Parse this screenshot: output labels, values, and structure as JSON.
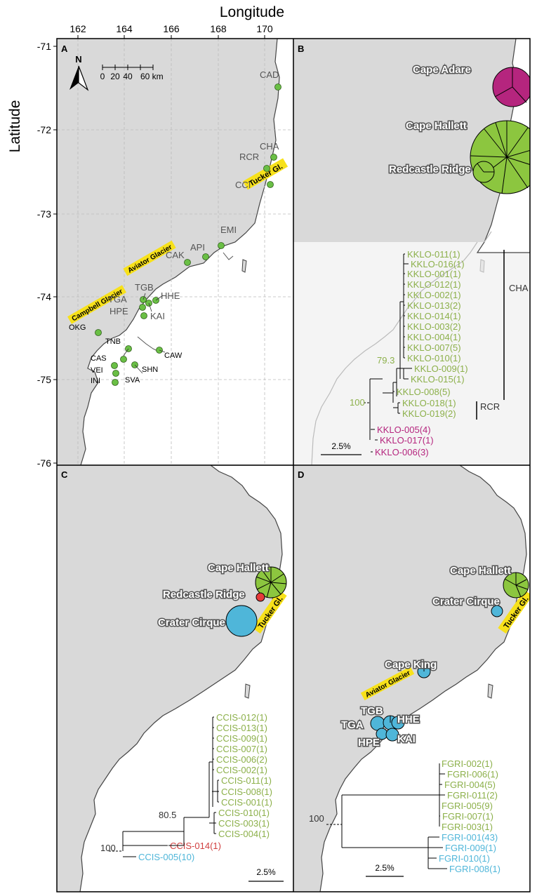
{
  "axes": {
    "x_title": "Longitude",
    "y_title": "Latitude",
    "x_ticks": [
      "162",
      "164",
      "166",
      "168",
      "170"
    ],
    "y_ticks": [
      "-71",
      "-72",
      "-73",
      "-74",
      "-75",
      "-76"
    ]
  },
  "panels": {
    "A": {
      "letter": "A",
      "north": "N",
      "scale_ticks": [
        "0",
        "20",
        "40",
        "60 km"
      ],
      "sites": [
        "CAD",
        "CHA",
        "RCR",
        "CCI",
        "EMI",
        "API",
        "CAK",
        "TGB",
        "TGA",
        "HHE",
        "HPE",
        "KAI",
        "OKG",
        "TNB",
        "CAS",
        "CAW",
        "VEI",
        "SHN",
        "INI",
        "SVA"
      ],
      "glaciers": [
        "Tucker Gl.",
        "Aviator Glacier",
        "Campbell Glacier"
      ]
    },
    "B": {
      "letter": "B",
      "locations": [
        "Cape Adare",
        "Cape Hallett",
        "Redcastle Ridge"
      ],
      "tips": [
        {
          "label": "KKLO-011(1)",
          "color": "green"
        },
        {
          "label": "KKLO-016(1)",
          "color": "green"
        },
        {
          "label": "KKLO-001(1)",
          "color": "green"
        },
        {
          "label": "KKLO-012(1)",
          "color": "green"
        },
        {
          "label": "KKLO-002(1)",
          "color": "green"
        },
        {
          "label": "KKLO-013(2)",
          "color": "green"
        },
        {
          "label": "KKLO-014(1)",
          "color": "green"
        },
        {
          "label": "KKLO-003(2)",
          "color": "green"
        },
        {
          "label": "KKLO-004(1)",
          "color": "green"
        },
        {
          "label": "KKLO-007(5)",
          "color": "green"
        },
        {
          "label": "KKLO-010(1)",
          "color": "green"
        },
        {
          "label": "KKLO-009(1)",
          "color": "green"
        },
        {
          "label": "KKLO-015(1)",
          "color": "green"
        },
        {
          "label": "KKLO-008(5)",
          "color": "green"
        },
        {
          "label": "KKLO-018(1)",
          "color": "green"
        },
        {
          "label": "KKLO-019(2)",
          "color": "green"
        },
        {
          "label": "KKLO-005(4)",
          "color": "magenta"
        },
        {
          "label": "KKLO-017(1)",
          "color": "magenta"
        },
        {
          "label": "KKLO-006(3)",
          "color": "magenta"
        }
      ],
      "clades": [
        "CHA",
        "RCR"
      ],
      "support": [
        "79.3",
        "100"
      ],
      "scale": "2.5%"
    },
    "C": {
      "letter": "C",
      "locations": [
        "Cape Hallett",
        "Redcastle Ridge",
        "Crater Cirque"
      ],
      "glacier": "Tucker Gl.",
      "tips": [
        {
          "label": "CCIS-012(1)",
          "color": "green"
        },
        {
          "label": "CCIS-013(1)",
          "color": "green"
        },
        {
          "label": "CCIS-009(1)",
          "color": "green"
        },
        {
          "label": "CCIS-007(1)",
          "color": "green"
        },
        {
          "label": "CCIS-006(2)",
          "color": "green"
        },
        {
          "label": "CCIS-002(1)",
          "color": "green"
        },
        {
          "label": "CCIS-011(1)",
          "color": "green"
        },
        {
          "label": "CCIS-008(1)",
          "color": "green"
        },
        {
          "label": "CCIS-001(1)",
          "color": "green"
        },
        {
          "label": "CCIS-010(1)",
          "color": "green"
        },
        {
          "label": "CCIS-003(1)",
          "color": "green"
        },
        {
          "label": "CCIS-004(1)",
          "color": "green"
        },
        {
          "label": "CCIS-014(1)",
          "color": "red"
        },
        {
          "label": "CCIS-005(10)",
          "color": "cyan"
        }
      ],
      "support": [
        "80.5",
        "100"
      ],
      "scale": "2.5%"
    },
    "D": {
      "letter": "D",
      "locations": [
        "Cape Hallett",
        "Crater Cirque",
        "Cape King",
        "TGB",
        "TGA",
        "HHE",
        "HPE",
        "KAI"
      ],
      "glaciers": [
        "Tucker Gl.",
        "Aviator Glacier"
      ],
      "tips": [
        {
          "label": "FGRI-002(1)",
          "color": "green"
        },
        {
          "label": "FGRI-006(1)",
          "color": "green"
        },
        {
          "label": "FGRI-004(5)",
          "color": "green"
        },
        {
          "label": "FGRI-011(2)",
          "color": "green"
        },
        {
          "label": "FGRI-005(9)",
          "color": "green"
        },
        {
          "label": "FGRI-007(1)",
          "color": "green"
        },
        {
          "label": "FGRI-003(1)",
          "color": "green"
        },
        {
          "label": "FGRI-001(43)",
          "color": "cyan"
        },
        {
          "label": "FGRI-009(1)",
          "color": "cyan"
        },
        {
          "label": "FGRI-010(1)",
          "color": "cyan"
        },
        {
          "label": "FGRI-008(1)",
          "color": "cyan"
        }
      ],
      "support": [
        "100"
      ],
      "scale": "2.5%"
    }
  },
  "colors": {
    "land": "#d9d9d9",
    "sea": "#ffffff",
    "green": "#8cc63f",
    "magenta": "#b5257e",
    "cyan": "#4fb6d9",
    "red": "#e63a3a",
    "glacier_bg": "#f7e11a",
    "dot": "#6abf45"
  }
}
